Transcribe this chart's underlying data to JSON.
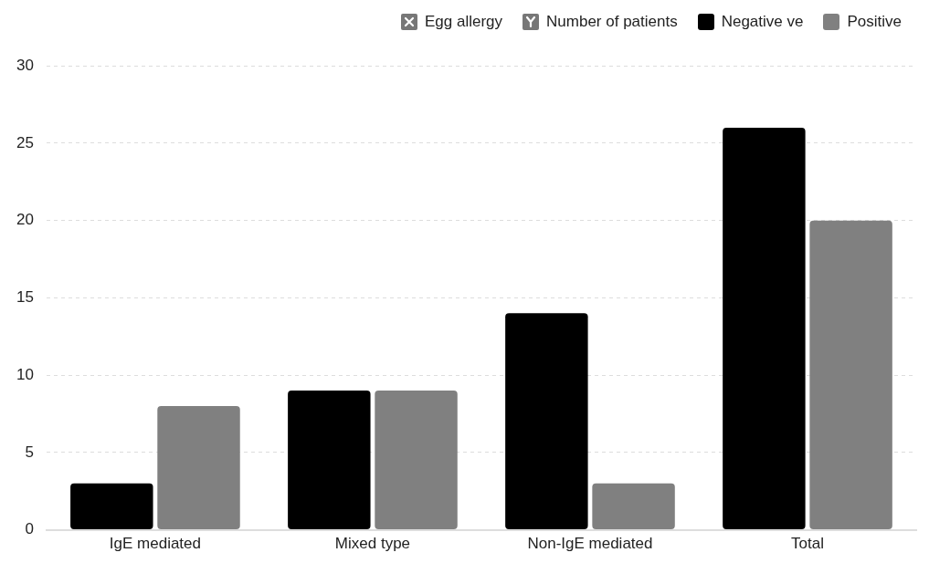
{
  "chart_data": {
    "type": "bar",
    "xlabel": "Egg allergy",
    "ylabel": "Number of patients",
    "categories": [
      "IgE mediated",
      "Mixed type",
      "Non-IgE mediated",
      "Total"
    ],
    "series": [
      {
        "name": "Negative ve",
        "color": "#000000",
        "values": [
          3,
          9,
          14,
          26
        ]
      },
      {
        "name": "Positive",
        "color": "#808080",
        "values": [
          8,
          9,
          3,
          20
        ]
      }
    ],
    "ylim": [
      0,
      30
    ],
    "yticks": [
      0,
      5,
      10,
      15,
      20,
      25,
      30
    ],
    "grid": "y",
    "legend": "top right"
  }
}
